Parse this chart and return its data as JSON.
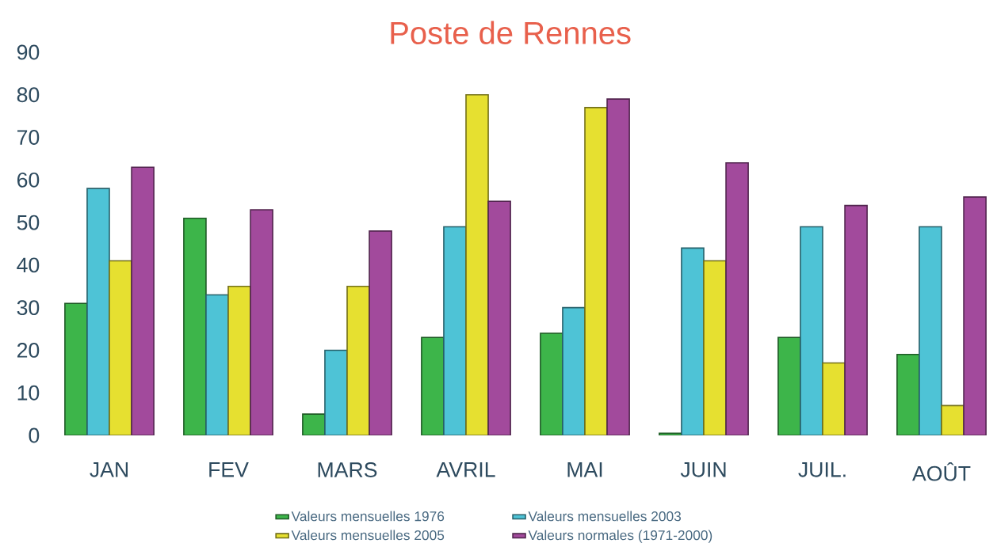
{
  "chart_data": {
    "type": "bar",
    "title": "Poste de Rennes",
    "categories": [
      "JAN",
      "FEV",
      "MARS",
      "AVRIL",
      "MAI",
      "JUIN",
      "JUIL.",
      "AOÛT"
    ],
    "series": [
      {
        "name": "Valeurs mensuelles 1976",
        "color": "#3db54a",
        "values": [
          31,
          51,
          5,
          23,
          24,
          0.5,
          23,
          19
        ]
      },
      {
        "name": "Valeurs mensuelles 2003",
        "color": "#4ec3d6",
        "values": [
          58,
          33,
          20,
          49,
          30,
          44,
          49,
          49
        ]
      },
      {
        "name": "Valeurs mensuelles 2005",
        "color": "#e6e030",
        "values": [
          41,
          35,
          35,
          80,
          77,
          41,
          17,
          7
        ]
      },
      {
        "name": "Valeurs normales (1971-2000)",
        "color": "#a24a9c",
        "values": [
          63,
          53,
          48,
          55,
          79,
          64,
          54,
          56
        ]
      }
    ],
    "ylim": [
      0,
      90
    ],
    "yticks": [
      0,
      10,
      20,
      30,
      40,
      50,
      60,
      70,
      80,
      90
    ],
    "legend": "bottom",
    "grid": false
  }
}
